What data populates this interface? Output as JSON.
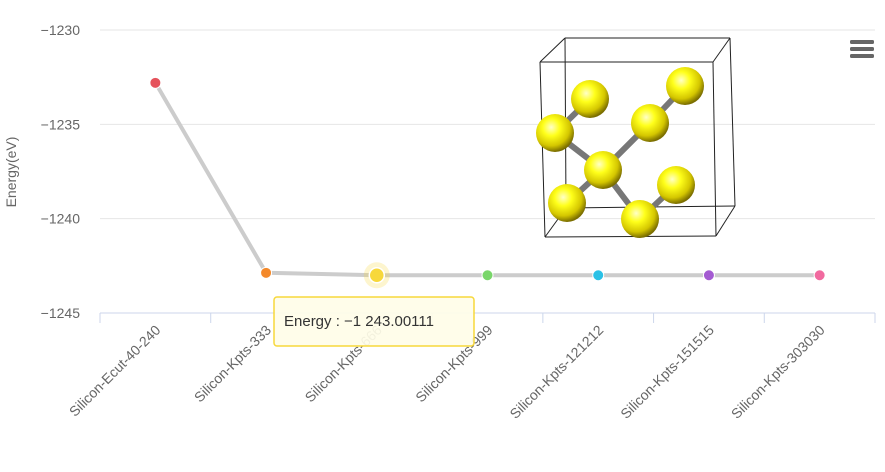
{
  "chart_data": {
    "type": "line",
    "categories": [
      "Silicon-Ecut-40-240",
      "Silicon-Kpts-333",
      "Silicon-Kpts-666",
      "Silicon-Kpts-999",
      "Silicon-Kpts-121212",
      "Silicon-Kpts-151515",
      "Silicon-Kpts-303030"
    ],
    "series": [
      {
        "values": [
          -1232.8,
          -1242.87,
          -1243.00111,
          -1243.0,
          -1243.0,
          -1243.0,
          -1243.0
        ]
      }
    ],
    "point_colors": [
      "#e5525b",
      "#f4892a",
      "#f7d83b",
      "#79d66a",
      "#2bc1e6",
      "#a45bd2",
      "#f16a9f"
    ],
    "line_color": "#cccccc",
    "ylabel": "Energy(eV)",
    "ylim": [
      -1245,
      -1230
    ],
    "yticks": [
      -1230,
      -1235,
      -1240,
      -1245
    ],
    "ytick_labels": [
      "−1230",
      "−1235",
      "−1240",
      "−1245"
    ],
    "grid": true,
    "highlight_index": 2,
    "tooltip": {
      "label": "Energy : −1 243.00111"
    },
    "menu_icon": "hamburger-menu-icon",
    "inset_icon": "silicon-crystal-structure-icon"
  }
}
